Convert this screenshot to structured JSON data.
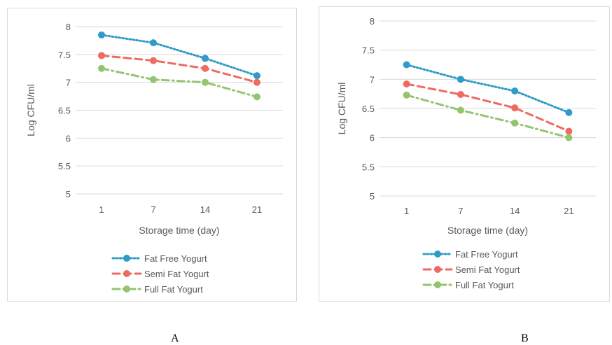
{
  "colors": {
    "fat_free": "#2E9BC8",
    "semi_fat": "#EE6A63",
    "full_fat": "#93C56F",
    "grid": "#d9d9d9",
    "text": "#595959"
  },
  "chart_data": [
    {
      "type": "line",
      "panel": "A",
      "categories": [
        "1",
        "7",
        "14",
        "21"
      ],
      "xlabel": "Storage time (day)",
      "ylabel": "Log CFU/ml",
      "ylim": [
        5,
        8
      ],
      "yticks": [
        "5",
        "5.5",
        "6",
        "6.5",
        "7",
        "7.5",
        "8"
      ],
      "grid": true,
      "legend": "bottom",
      "series": [
        {
          "name": "Fat Free Yogurt",
          "values": [
            7.85,
            7.71,
            7.43,
            7.12
          ],
          "style": "dotted",
          "color": "#2E9BC8"
        },
        {
          "name": "Semi Fat  Yogurt",
          "values": [
            7.48,
            7.39,
            7.25,
            7.0
          ],
          "style": "dashed",
          "color": "#EE6A63"
        },
        {
          "name": "Full Fat  Yogurt",
          "values": [
            7.25,
            7.05,
            7.0,
            6.74
          ],
          "style": "dashdot",
          "color": "#93C56F"
        }
      ]
    },
    {
      "type": "line",
      "panel": "B",
      "categories": [
        "1",
        "7",
        "14",
        "21"
      ],
      "xlabel": "Storage time (day)",
      "ylabel": "Log CFU/ml",
      "ylim": [
        5,
        8
      ],
      "yticks": [
        "5",
        "5.5",
        "6",
        "6.5",
        "7",
        "7.5",
        "8"
      ],
      "grid": true,
      "legend": "bottom",
      "series": [
        {
          "name": "Fat Free Yogurt",
          "values": [
            7.25,
            7.0,
            6.8,
            6.43
          ],
          "style": "dotted",
          "color": "#2E9BC8"
        },
        {
          "name": "Semi Fat  Yogurt",
          "values": [
            6.92,
            6.74,
            6.51,
            6.11
          ],
          "style": "dashed",
          "color": "#EE6A63"
        },
        {
          "name": "Full Fat  Yogurt",
          "values": [
            6.73,
            6.47,
            6.25,
            6.0
          ],
          "style": "dashdot",
          "color": "#93C56F"
        }
      ]
    }
  ],
  "labels": {
    "panel_a": "A",
    "panel_b": "B"
  }
}
